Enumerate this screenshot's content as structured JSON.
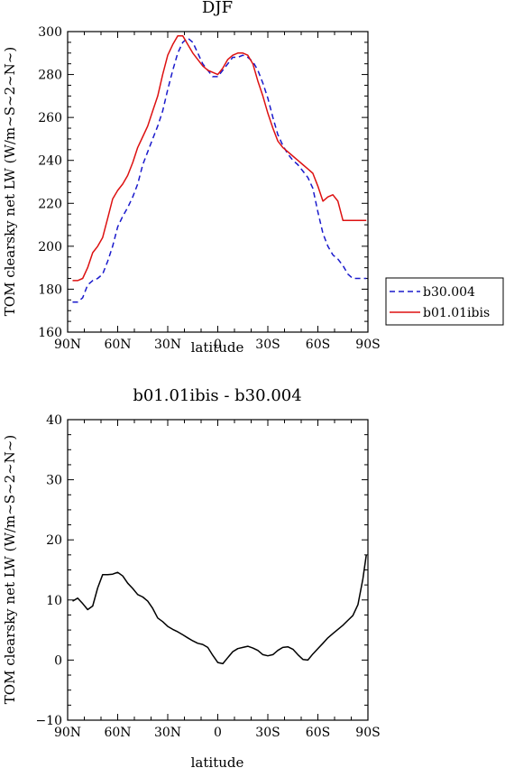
{
  "chart_data": [
    {
      "type": "line",
      "title": "DJF",
      "xlabel": "latitude",
      "ylabel": "TOM clearsky net LW (W/m~S~2~N~)",
      "xlim": [
        90,
        -90
      ],
      "ylim": [
        160,
        300
      ],
      "x_ticks": [
        90,
        60,
        30,
        0,
        -30,
        -60,
        -90
      ],
      "x_tick_labels": [
        "90N",
        "60N",
        "30N",
        "0",
        "30S",
        "60S",
        "90S"
      ],
      "y_ticks": [
        160,
        180,
        200,
        220,
        240,
        260,
        280,
        300
      ],
      "y_tick_labels": [
        "160",
        "180",
        "200",
        "220",
        "240",
        "260",
        "280",
        "300"
      ],
      "legend_position": "right",
      "series": [
        {
          "name": "b30.004",
          "color": "#1a1acc",
          "dash": "dashed",
          "x": [
            87,
            84,
            81,
            78,
            75,
            72,
            69,
            66,
            63,
            60,
            57,
            54,
            51,
            48,
            45,
            42,
            39,
            36,
            33,
            30,
            27,
            24,
            21,
            18,
            15,
            12,
            9,
            6,
            3,
            0,
            -3,
            -6,
            -9,
            -12,
            -15,
            -18,
            -21,
            -24,
            -27,
            -30,
            -33,
            -36,
            -39,
            -42,
            -45,
            -48,
            -51,
            -54,
            -57,
            -60,
            -63,
            -66,
            -69,
            -72,
            -75,
            -78,
            -81,
            -84,
            -87,
            -89
          ],
          "y": [
            174,
            174,
            176,
            182,
            184,
            185,
            187,
            193,
            200,
            209,
            214,
            218,
            223,
            229,
            238,
            244,
            250,
            256,
            263,
            273,
            282,
            290,
            295,
            297,
            295,
            290,
            285,
            282,
            279,
            279,
            282,
            285,
            288,
            288,
            289,
            288,
            286,
            282,
            276,
            269,
            260,
            252,
            247,
            243,
            240,
            238,
            235,
            232,
            227,
            216,
            206,
            200,
            196,
            194,
            191,
            187,
            185,
            185,
            185,
            185
          ]
        },
        {
          "name": "b01.01ibis",
          "color": "#dd1111",
          "dash": "solid",
          "x": [
            87,
            84,
            81,
            78,
            75,
            72,
            69,
            66,
            63,
            60,
            57,
            54,
            51,
            48,
            45,
            42,
            39,
            36,
            33,
            30,
            27,
            24,
            21,
            18,
            15,
            12,
            9,
            6,
            3,
            0,
            -3,
            -6,
            -9,
            -12,
            -15,
            -18,
            -21,
            -24,
            -27,
            -30,
            -33,
            -36,
            -39,
            -42,
            -45,
            -48,
            -51,
            -54,
            -57,
            -60,
            -63,
            -66,
            -69,
            -72,
            -75,
            -78,
            -81,
            -84,
            -87,
            -89
          ],
          "y": [
            184,
            184,
            185,
            190,
            197,
            200,
            204,
            213,
            222,
            226,
            229,
            233,
            239,
            246,
            251,
            256,
            263,
            270,
            280,
            289,
            294,
            298,
            298,
            294,
            290,
            287,
            284,
            282,
            281,
            280,
            283,
            287,
            289,
            290,
            290,
            289,
            285,
            277,
            270,
            262,
            255,
            249,
            246,
            244,
            242,
            240,
            238,
            236,
            234,
            228,
            221,
            223,
            224,
            221,
            212,
            212,
            212,
            212,
            212,
            212
          ]
        }
      ]
    },
    {
      "type": "line",
      "title": "b01.01ibis - b30.004",
      "xlabel": "latitude",
      "ylabel": "TOM clearsky net LW (W/m~S~2~N~)",
      "xlim": [
        90,
        -90
      ],
      "ylim": [
        -10,
        40
      ],
      "x_ticks": [
        90,
        60,
        30,
        0,
        -30,
        -60,
        -90
      ],
      "x_tick_labels": [
        "90N",
        "60N",
        "30N",
        "0",
        "30S",
        "60S",
        "90S"
      ],
      "y_ticks": [
        -10,
        0,
        10,
        20,
        30,
        40
      ],
      "y_tick_labels": [
        "−10",
        "0",
        "10",
        "20",
        "30",
        "40"
      ],
      "series": [
        {
          "color": "#000000",
          "dash": "solid",
          "x": [
            87,
            84,
            81,
            78,
            75,
            72,
            69,
            66,
            63,
            60,
            57,
            54,
            51,
            48,
            45,
            42,
            39,
            36,
            33,
            30,
            27,
            24,
            21,
            18,
            15,
            12,
            9,
            6,
            3,
            0,
            -3,
            -6,
            -9,
            -12,
            -15,
            -18,
            -21,
            -24,
            -27,
            -30,
            -33,
            -36,
            -39,
            -42,
            -45,
            -48,
            -51,
            -54,
            -57,
            -60,
            -63,
            -66,
            -69,
            -72,
            -75,
            -78,
            -81,
            -84,
            -87,
            -89
          ],
          "y": [
            9.8,
            10.3,
            9.4,
            8.4,
            9.0,
            12.0,
            14.2,
            14.2,
            14.3,
            14.6,
            14.0,
            12.8,
            11.9,
            10.9,
            10.5,
            9.8,
            8.6,
            7.0,
            6.4,
            5.6,
            5.1,
            4.7,
            4.2,
            3.7,
            3.2,
            2.8,
            2.6,
            2.1,
            0.8,
            -0.4,
            -0.6,
            0.4,
            1.4,
            1.9,
            2.1,
            2.3,
            2.0,
            1.6,
            0.9,
            0.7,
            0.9,
            1.6,
            2.1,
            2.2,
            1.8,
            0.9,
            0.1,
            0.0,
            1.0,
            1.9,
            2.8,
            3.7,
            4.4,
            5.1,
            5.8,
            6.6,
            7.4,
            9.2,
            13.5,
            17.5
          ]
        }
      ]
    }
  ]
}
